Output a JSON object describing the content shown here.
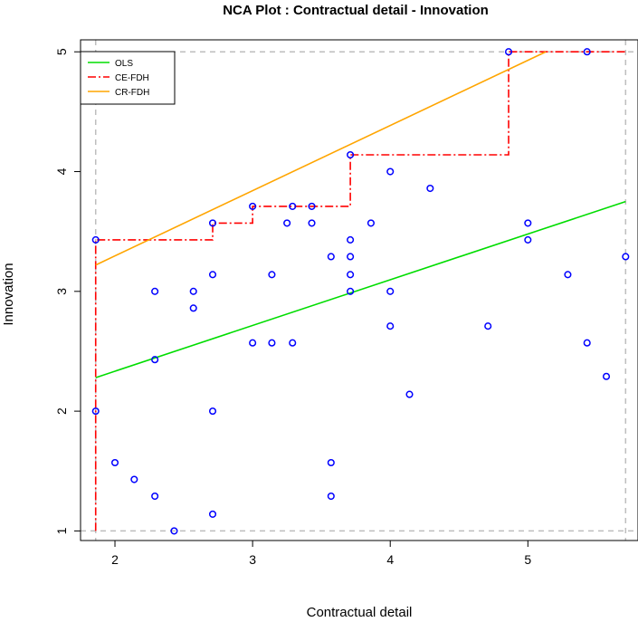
{
  "chart_data": {
    "type": "scatter",
    "title": "NCA Plot : Contractual detail - Innovation",
    "xlabel": "Contractual detail",
    "ylabel": "Innovation",
    "xlim": [
      1.75,
      5.8
    ],
    "ylim": [
      0.92,
      5.1
    ],
    "xticks": [
      2,
      3,
      4,
      5
    ],
    "yticks": [
      1,
      2,
      3,
      4,
      5
    ],
    "x_tick_labels": [
      "2",
      "3",
      "4",
      "5"
    ],
    "y_tick_labels": [
      "1",
      "2",
      "3",
      "4",
      "5"
    ],
    "reference_lines": {
      "x": [
        1.86,
        5.71
      ],
      "y": [
        1,
        5
      ]
    },
    "points": [
      {
        "x": 1.86,
        "y": 3.43
      },
      {
        "x": 1.86,
        "y": 2.0
      },
      {
        "x": 2.0,
        "y": 1.57
      },
      {
        "x": 2.14,
        "y": 1.43
      },
      {
        "x": 2.29,
        "y": 3.0
      },
      {
        "x": 2.29,
        "y": 2.43
      },
      {
        "x": 2.29,
        "y": 1.29
      },
      {
        "x": 2.43,
        "y": 1.0
      },
      {
        "x": 2.57,
        "y": 3.0
      },
      {
        "x": 2.57,
        "y": 2.86
      },
      {
        "x": 2.71,
        "y": 3.57
      },
      {
        "x": 2.71,
        "y": 3.14
      },
      {
        "x": 2.71,
        "y": 2.0
      },
      {
        "x": 2.71,
        "y": 1.14
      },
      {
        "x": 3.0,
        "y": 3.71
      },
      {
        "x": 3.0,
        "y": 2.57
      },
      {
        "x": 3.14,
        "y": 3.14
      },
      {
        "x": 3.14,
        "y": 2.57
      },
      {
        "x": 3.29,
        "y": 3.71
      },
      {
        "x": 3.25,
        "y": 3.57
      },
      {
        "x": 3.29,
        "y": 2.57
      },
      {
        "x": 3.43,
        "y": 3.71
      },
      {
        "x": 3.43,
        "y": 3.57
      },
      {
        "x": 3.57,
        "y": 3.29
      },
      {
        "x": 3.57,
        "y": 1.57
      },
      {
        "x": 3.57,
        "y": 1.29
      },
      {
        "x": 3.71,
        "y": 4.14
      },
      {
        "x": 3.71,
        "y": 3.43
      },
      {
        "x": 3.71,
        "y": 3.29
      },
      {
        "x": 3.71,
        "y": 3.14
      },
      {
        "x": 3.71,
        "y": 3.0
      },
      {
        "x": 3.86,
        "y": 3.57
      },
      {
        "x": 4.0,
        "y": 4.0
      },
      {
        "x": 4.0,
        "y": 3.0
      },
      {
        "x": 4.0,
        "y": 2.71
      },
      {
        "x": 4.14,
        "y": 2.14
      },
      {
        "x": 4.29,
        "y": 3.86
      },
      {
        "x": 4.71,
        "y": 2.71
      },
      {
        "x": 4.86,
        "y": 5.0
      },
      {
        "x": 5.0,
        "y": 3.57
      },
      {
        "x": 5.0,
        "y": 3.43
      },
      {
        "x": 5.29,
        "y": 3.14
      },
      {
        "x": 5.43,
        "y": 5.0
      },
      {
        "x": 5.43,
        "y": 2.57
      },
      {
        "x": 5.57,
        "y": 2.29
      },
      {
        "x": 5.71,
        "y": 3.29
      }
    ],
    "lines": [
      {
        "name": "OLS",
        "color": "#00dd00",
        "style": "solid",
        "x": [
          1.86,
          5.71
        ],
        "y": [
          2.28,
          3.75
        ]
      },
      {
        "name": "CE-FDH",
        "color": "#ff0000",
        "style": "dashdot",
        "x": [
          1.86,
          1.86,
          2.71,
          2.71,
          3.0,
          3.0,
          3.71,
          3.71,
          4.86,
          4.86,
          5.71
        ],
        "y": [
          1.0,
          3.43,
          3.43,
          3.57,
          3.57,
          3.71,
          3.71,
          4.14,
          4.14,
          5.0,
          5.0
        ]
      },
      {
        "name": "CR-FDH",
        "color": "#ffa500",
        "style": "solid",
        "x": [
          1.86,
          5.13
        ],
        "y": [
          3.22,
          5.0
        ]
      }
    ],
    "legend": {
      "position": "top-left",
      "entries": [
        "OLS",
        "CE-FDH",
        "CR-FDH"
      ]
    },
    "colors": {
      "points": "#0000ff",
      "reference": "#bebebe",
      "axis": "#000000"
    }
  }
}
